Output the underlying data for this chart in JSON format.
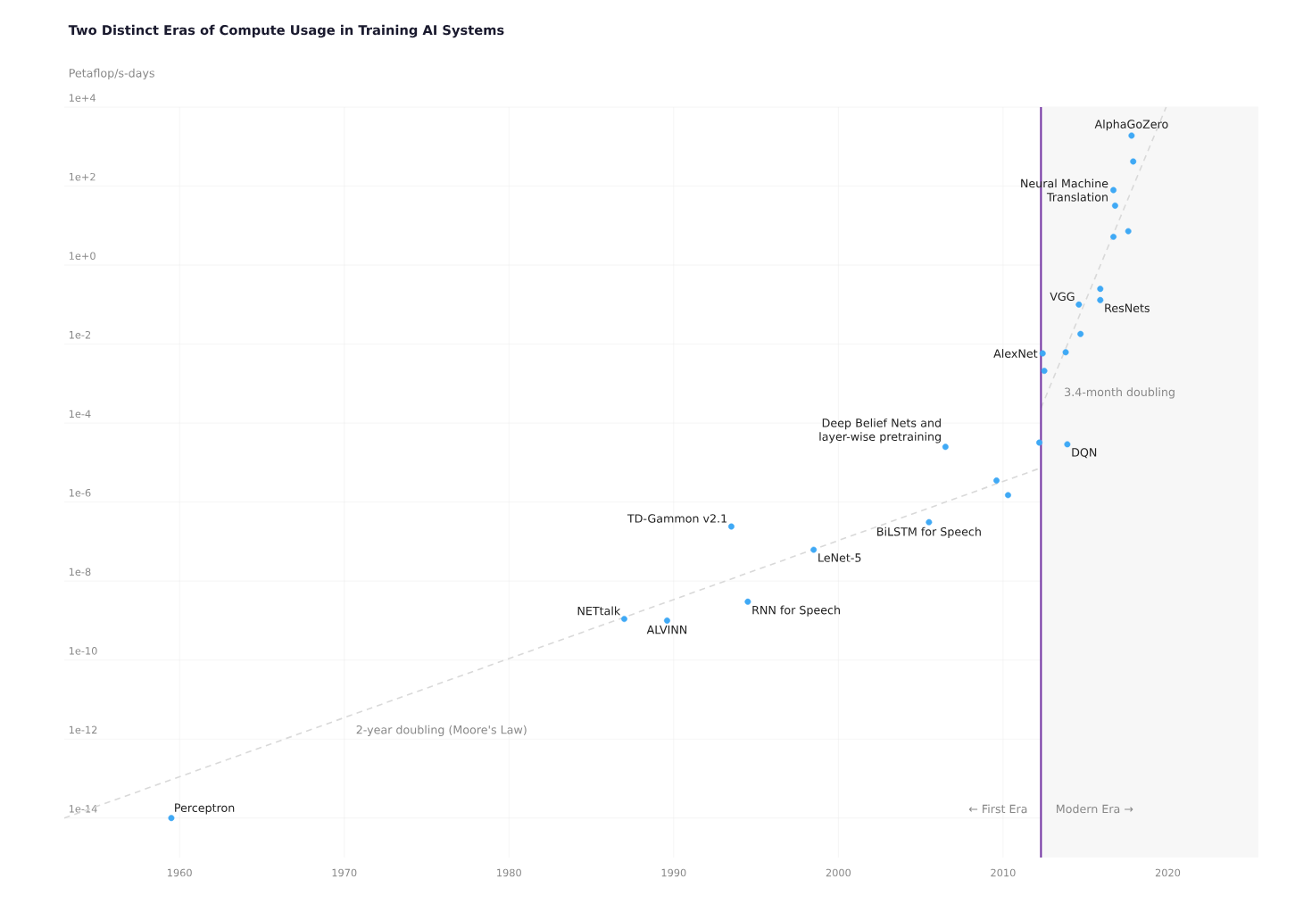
{
  "chart_data": {
    "type": "scatter",
    "title": "Two Distinct Eras of Compute Usage in Training AI Systems",
    "ylabel": "Petaflop/s-days",
    "log": "y",
    "grid": true,
    "xlim": [
      1953.0,
      2025.5
    ],
    "ylim": [
      1e-15,
      10000.0
    ],
    "xticks": [
      1960,
      1970,
      1980,
      1990,
      2000,
      2010,
      2020
    ],
    "yticks": [
      {
        "value": 1e-14,
        "label": "1e-14"
      },
      {
        "value": 1e-12,
        "label": "1e-12"
      },
      {
        "value": 1e-10,
        "label": "1e-10"
      },
      {
        "value": 1e-08,
        "label": "1e-8"
      },
      {
        "value": 1e-06,
        "label": "1e-6"
      },
      {
        "value": 0.0001,
        "label": "1e-4"
      },
      {
        "value": 0.01,
        "label": "1e-2"
      },
      {
        "value": 1,
        "label": "1e+0"
      },
      {
        "value": 100,
        "label": "1e+2"
      },
      {
        "value": 10000,
        "label": "1e+4"
      }
    ],
    "series": [
      {
        "color": "#3fa9f5",
        "marker": "circle",
        "x": [
          1959.5,
          1987.0,
          1989.6,
          1993.5,
          1994.5,
          1998.5,
          2005.5,
          2006.5,
          2009.6,
          2010.3,
          2012.2,
          2012.4,
          2012.5,
          2013.8,
          2013.9,
          2014.6,
          2014.7,
          2015.9,
          2015.9,
          2016.7,
          2016.7,
          2016.8,
          2017.6,
          2017.8,
          2017.9
        ],
        "values": [
          1e-14,
          1.1e-09,
          1e-09,
          2.4e-07,
          3e-09,
          6.2e-08,
          3.1e-07,
          2.5e-05,
          3.5e-06,
          1.5e-06,
          3.2e-05,
          0.0058,
          0.0021,
          0.0062,
          2.9e-05,
          0.1,
          0.018,
          0.13,
          0.25,
          5.2,
          79,
          32,
          7.2,
          1900,
          420
        ]
      },
      {
        "type": "line",
        "color": "#d9d9d9",
        "line_style": "dashed",
        "marker": "none",
        "x": [
          1953.0,
          2012.2
        ],
        "values": [
          1e-14,
          7.1e-06
        ]
      },
      {
        "type": "line",
        "color": "#d9d9d9",
        "line_style": "dashed",
        "marker": "none",
        "x": [
          2012.3,
          2019.9
        ],
        "values": [
          0.00024,
          10000.0
        ]
      }
    ],
    "bands": [
      {
        "axis": "x",
        "from": 2012.3,
        "to": 2025.5,
        "color": "#f7f7f7"
      }
    ],
    "ref_lines": [
      {
        "axis": "x",
        "value": 2012.3,
        "color": "#7030a0"
      }
    ],
    "annotations": [
      {
        "text": "AlphaGoZero",
        "x": 2017.8,
        "y": 1900
      },
      {
        "text": "Neural Machine Translation",
        "x": 2016.7,
        "y": 79
      },
      {
        "text": "VGG",
        "x": 2014.6,
        "y": 0.1
      },
      {
        "text": "ResNets",
        "x": 2015.9,
        "y": 0.13
      },
      {
        "text": "AlexNet",
        "x": 2012.4,
        "y": 0.0058
      },
      {
        "text": "Deep Belief Nets and layer-wise pretraining",
        "x": 2006.5,
        "y": 2.5e-05
      },
      {
        "text": "DQN",
        "x": 2013.9,
        "y": 2.9e-05
      },
      {
        "text": "TD-Gammon v2.1",
        "x": 1993.5,
        "y": 2.4e-07
      },
      {
        "text": "BiLSTM for Speech",
        "x": 2005.5,
        "y": 3.1e-07
      },
      {
        "text": "LeNet-5",
        "x": 1998.5,
        "y": 6.2e-08
      },
      {
        "text": "RNN for Speech",
        "x": 1994.5,
        "y": 3e-09
      },
      {
        "text": "NETtalk",
        "x": 1987.0,
        "y": 1.1e-09
      },
      {
        "text": "ALVINN",
        "x": 1989.6,
        "y": 1e-09
      },
      {
        "text": "Perceptron",
        "x": 1959.5,
        "y": 1e-14
      },
      "2-year doubling (Moore's Law)",
      "3.4-month doubling",
      "← First Era",
      "Modern Era →"
    ]
  }
}
